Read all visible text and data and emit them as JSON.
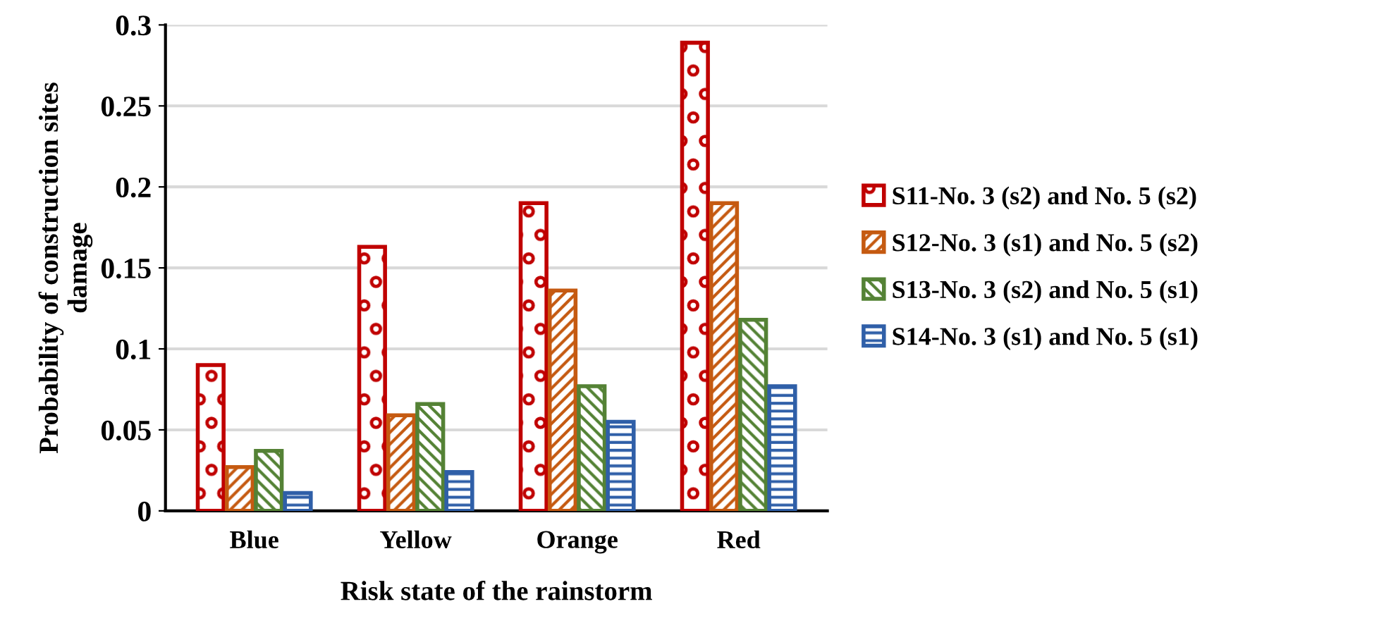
{
  "chart_data": {
    "type": "bar",
    "xlabel": "Risk state of the rainstorm",
    "ylabel": "Probability of construction sites\ndamage",
    "categories": [
      "Blue",
      "Yellow",
      "Orange",
      "Red"
    ],
    "series": [
      {
        "name": "S11-No. 3 (s2) and No. 5 (s2)",
        "color": "#c00000",
        "values": [
          0.09,
          0.163,
          0.19,
          0.289
        ]
      },
      {
        "name": "S12-No. 3 (s1) and No. 5 (s2)",
        "color": "#c55a11",
        "values": [
          0.027,
          0.059,
          0.136,
          0.19
        ]
      },
      {
        "name": "S13-No. 3 (s2) and No. 5 (s1)",
        "color": "#548235",
        "values": [
          0.037,
          0.066,
          0.077,
          0.118
        ]
      },
      {
        "name": "S14-No. 3 (s1) and No. 5 (s1)",
        "color": "#2f5fa8",
        "values": [
          0.011,
          0.024,
          0.055,
          0.077
        ]
      }
    ],
    "ylim": [
      0,
      0.3
    ],
    "yticks": [
      0,
      0.05,
      0.1,
      0.15,
      0.2,
      0.25,
      0.3
    ],
    "grid": "y",
    "legend": "right"
  }
}
